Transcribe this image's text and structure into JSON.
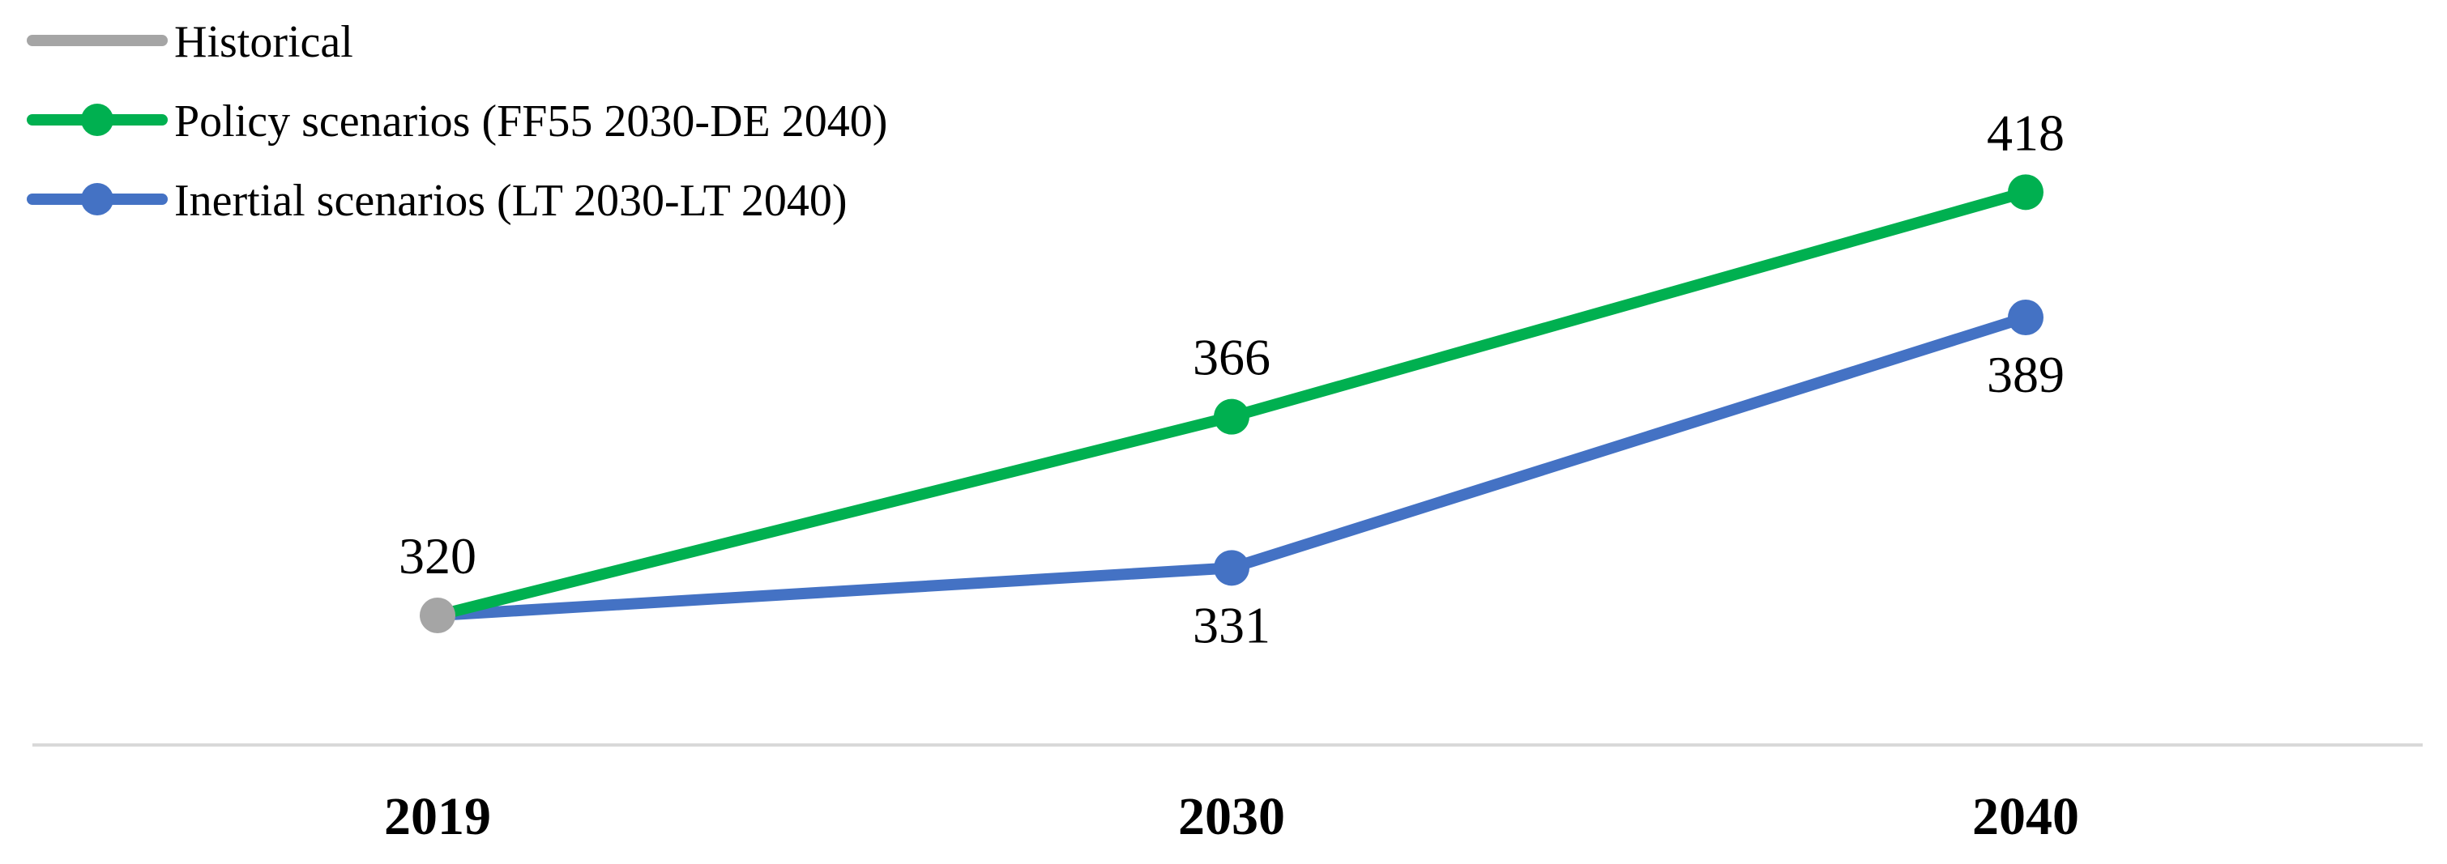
{
  "chart_data": {
    "type": "line",
    "title": "",
    "xlabel": "",
    "ylabel": "",
    "categories": [
      "2019",
      "2030",
      "2040"
    ],
    "ylim": [
      290,
      440
    ],
    "grid": false,
    "legend_position": "top-left",
    "series": [
      {
        "name": "Historical",
        "color": "#a5a5a5",
        "values": [
          320,
          null,
          null
        ],
        "labels": [
          "320",
          null,
          null
        ],
        "label_side": [
          "above",
          null,
          null
        ]
      },
      {
        "name": "Policy scenarios (FF55 2030-DE 2040)",
        "color": "#00b050",
        "values": [
          320,
          366,
          418
        ],
        "labels": [
          null,
          "366",
          "418"
        ],
        "label_side": [
          null,
          "above",
          "above"
        ]
      },
      {
        "name": "Inertial scenarios (LT 2030-LT 2040)",
        "color": "#4472c4",
        "values": [
          320,
          331,
          389
        ],
        "labels": [
          null,
          "331",
          "389"
        ],
        "label_side": [
          null,
          "below",
          "below"
        ]
      }
    ]
  }
}
